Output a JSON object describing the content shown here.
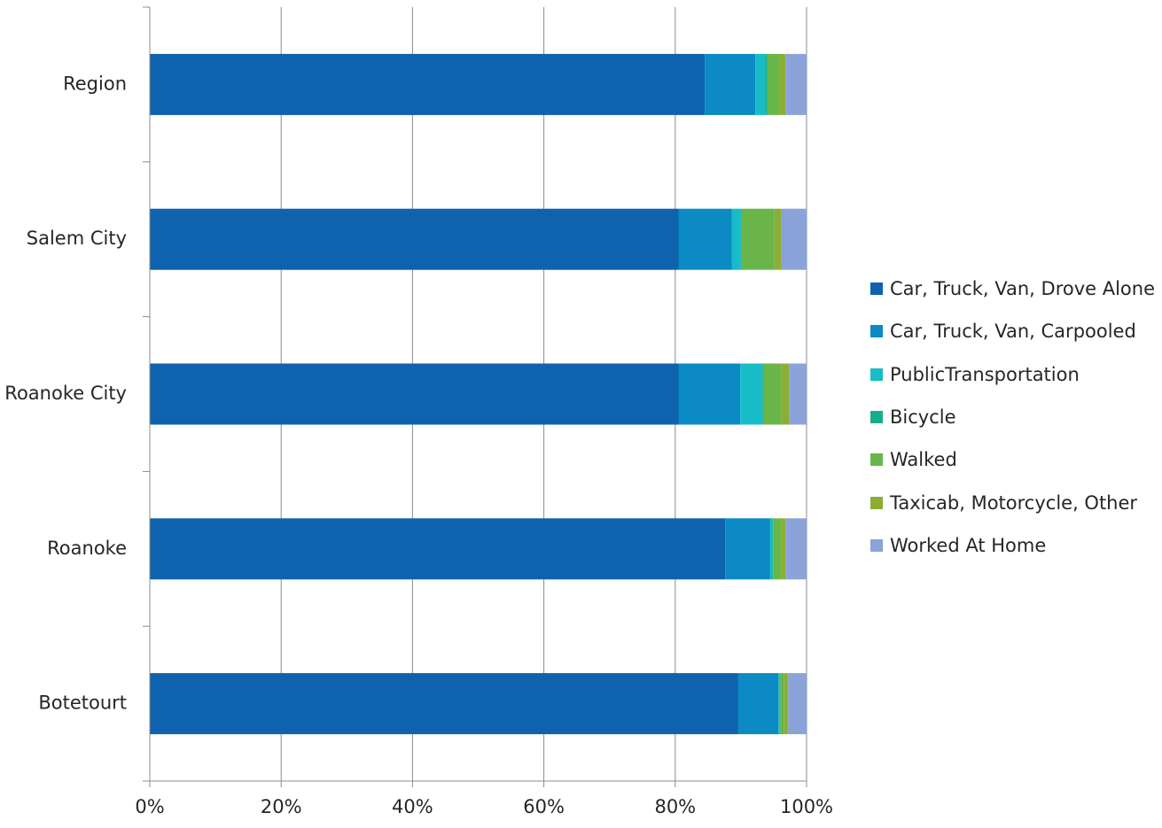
{
  "chart_data": {
    "type": "bar",
    "orientation": "horizontal",
    "stacked": "percent",
    "title": "",
    "xlabel": "",
    "ylabel": "",
    "xlim": [
      0,
      100
    ],
    "x_ticks": [
      "0%",
      "20%",
      "40%",
      "60%",
      "80%",
      "100%"
    ],
    "grid": "vertical",
    "legend_position": "right",
    "categories": [
      "Region",
      "Salem City",
      "Roanoke City",
      "Roanoke",
      "Botetourt"
    ],
    "series": [
      {
        "name": "Car, Truck, Van, Drove Alone",
        "color": "#0e62ae",
        "values": [
          84.5,
          80.5,
          80.5,
          87.6,
          89.6
        ]
      },
      {
        "name": "Car, Truck, Van, Carpooled",
        "color": "#0b8ac3",
        "values": [
          7.7,
          8.1,
          9.4,
          6.8,
          6.1
        ]
      },
      {
        "name": "PublicTransportation",
        "color": "#17bcc8",
        "values": [
          1.6,
          1.4,
          3.4,
          0.4,
          0.2
        ]
      },
      {
        "name": "Bicycle",
        "color": "#16ad8c",
        "values": [
          0.2,
          0.1,
          0.2,
          0.1,
          0.1
        ]
      },
      {
        "name": "Walked",
        "color": "#69b54a",
        "values": [
          1.9,
          5.0,
          2.6,
          1.2,
          0.6
        ]
      },
      {
        "name": "Taxicab, Motorcycle, Other",
        "color": "#8cae35",
        "values": [
          0.9,
          1.1,
          1.3,
          0.7,
          0.6
        ]
      },
      {
        "name": "Worked At Home",
        "color": "#8aa3d8",
        "values": [
          3.2,
          3.8,
          2.6,
          3.2,
          2.8
        ]
      }
    ]
  }
}
